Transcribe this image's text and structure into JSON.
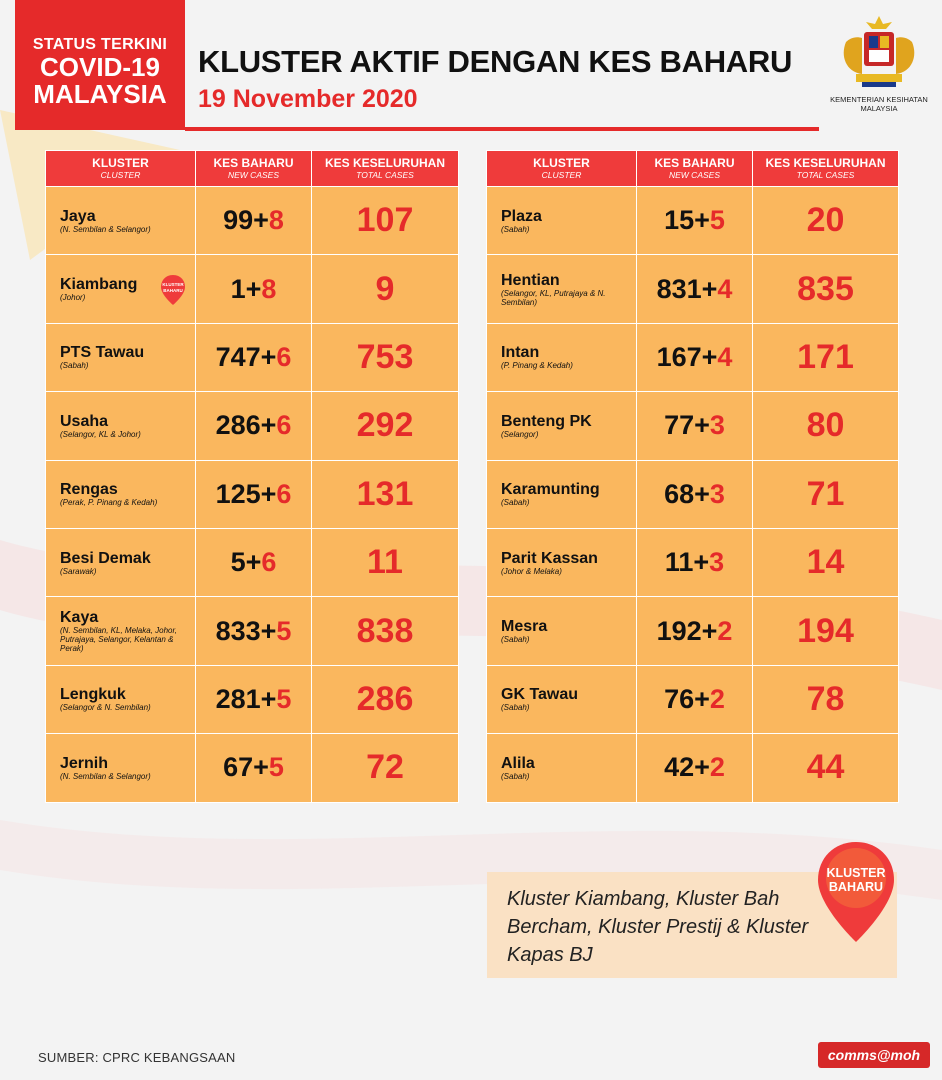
{
  "header": {
    "status_line1": "STATUS TERKINI",
    "status_line2": "COVID-19",
    "status_line3": "MALAYSIA",
    "title": "KLUSTER AKTIF DENGAN KES BAHARU",
    "date": "19 November 2020",
    "ministry": "KEMENTERIAN KESIHATAN MALAYSIA"
  },
  "table_headers": {
    "cluster": "KLUSTER",
    "cluster_sub": "CLUSTER",
    "new_cases": "KES BAHARU",
    "new_cases_sub": "NEW CASES",
    "total_cases": "KES KESELURUHAN",
    "total_cases_sub": "TOTAL CASES"
  },
  "left_table": [
    {
      "name": "Jaya",
      "region": "(N. Sembilan & Selangor)",
      "base": "99",
      "add": "8",
      "total": "107"
    },
    {
      "name": "Kiambang",
      "region": "(Johor)",
      "base": "1",
      "add": "8",
      "total": "9",
      "badge": "KLUSTER BAHARU"
    },
    {
      "name": "PTS Tawau",
      "region": "(Sabah)",
      "base": "747",
      "add": "6",
      "total": "753"
    },
    {
      "name": "Usaha",
      "region": "(Selangor, KL & Johor)",
      "base": "286",
      "add": "6",
      "total": "292"
    },
    {
      "name": "Rengas",
      "region": "(Perak, P. Pinang & Kedah)",
      "base": "125",
      "add": "6",
      "total": "131"
    },
    {
      "name": "Besi Demak",
      "region": "(Sarawak)",
      "base": "5",
      "add": "6",
      "total": "11"
    },
    {
      "name": "Kaya",
      "region": "(N. Sembilan, KL, Melaka, Johor, Putrajaya, Selangor, Kelantan & Perak)",
      "base": "833",
      "add": "5",
      "total": "838"
    },
    {
      "name": "Lengkuk",
      "region": "(Selangor & N. Sembilan)",
      "base": "281",
      "add": "5",
      "total": "286"
    },
    {
      "name": "Jernih",
      "region": "(N. Sembilan & Selangor)",
      "base": "67",
      "add": "5",
      "total": "72"
    }
  ],
  "right_table": [
    {
      "name": "Plaza",
      "region": "(Sabah)",
      "base": "15",
      "add": "5",
      "total": "20"
    },
    {
      "name": "Hentian",
      "region": "(Selangor, KL, Putrajaya & N. Sembilan)",
      "base": "831",
      "add": "4",
      "total": "835"
    },
    {
      "name": "Intan",
      "region": "(P. Pinang & Kedah)",
      "base": "167",
      "add": "4",
      "total": "171"
    },
    {
      "name": "Benteng PK",
      "region": "(Selangor)",
      "base": "77",
      "add": "3",
      "total": "80"
    },
    {
      "name": "Karamunting",
      "region": "(Sabah)",
      "base": "68",
      "add": "3",
      "total": "71"
    },
    {
      "name": "Parit Kassan",
      "region": "(Johor & Melaka)",
      "base": "11",
      "add": "3",
      "total": "14"
    },
    {
      "name": "Mesra",
      "region": "(Sabah)",
      "base": "192",
      "add": "2",
      "total": "194"
    },
    {
      "name": "GK Tawau",
      "region": "(Sabah)",
      "base": "76",
      "add": "2",
      "total": "78"
    },
    {
      "name": "Alila",
      "region": "(Sabah)",
      "base": "42",
      "add": "2",
      "total": "44"
    }
  ],
  "note": {
    "text": "Kluster Kiambang, Kluster Bah Bercham, Kluster Prestij & Kluster Kapas BJ",
    "pin_line1": "KLUSTER",
    "pin_line2": "BAHARU"
  },
  "footer": {
    "source": "SUMBER: CPRC KEBANGSAAN",
    "badge": "comms@moh"
  },
  "colors": {
    "red": "#e52a2a",
    "header_red": "#ef3b3b",
    "cell_orange": "#fab75e",
    "note_bg": "#fae1c4"
  }
}
